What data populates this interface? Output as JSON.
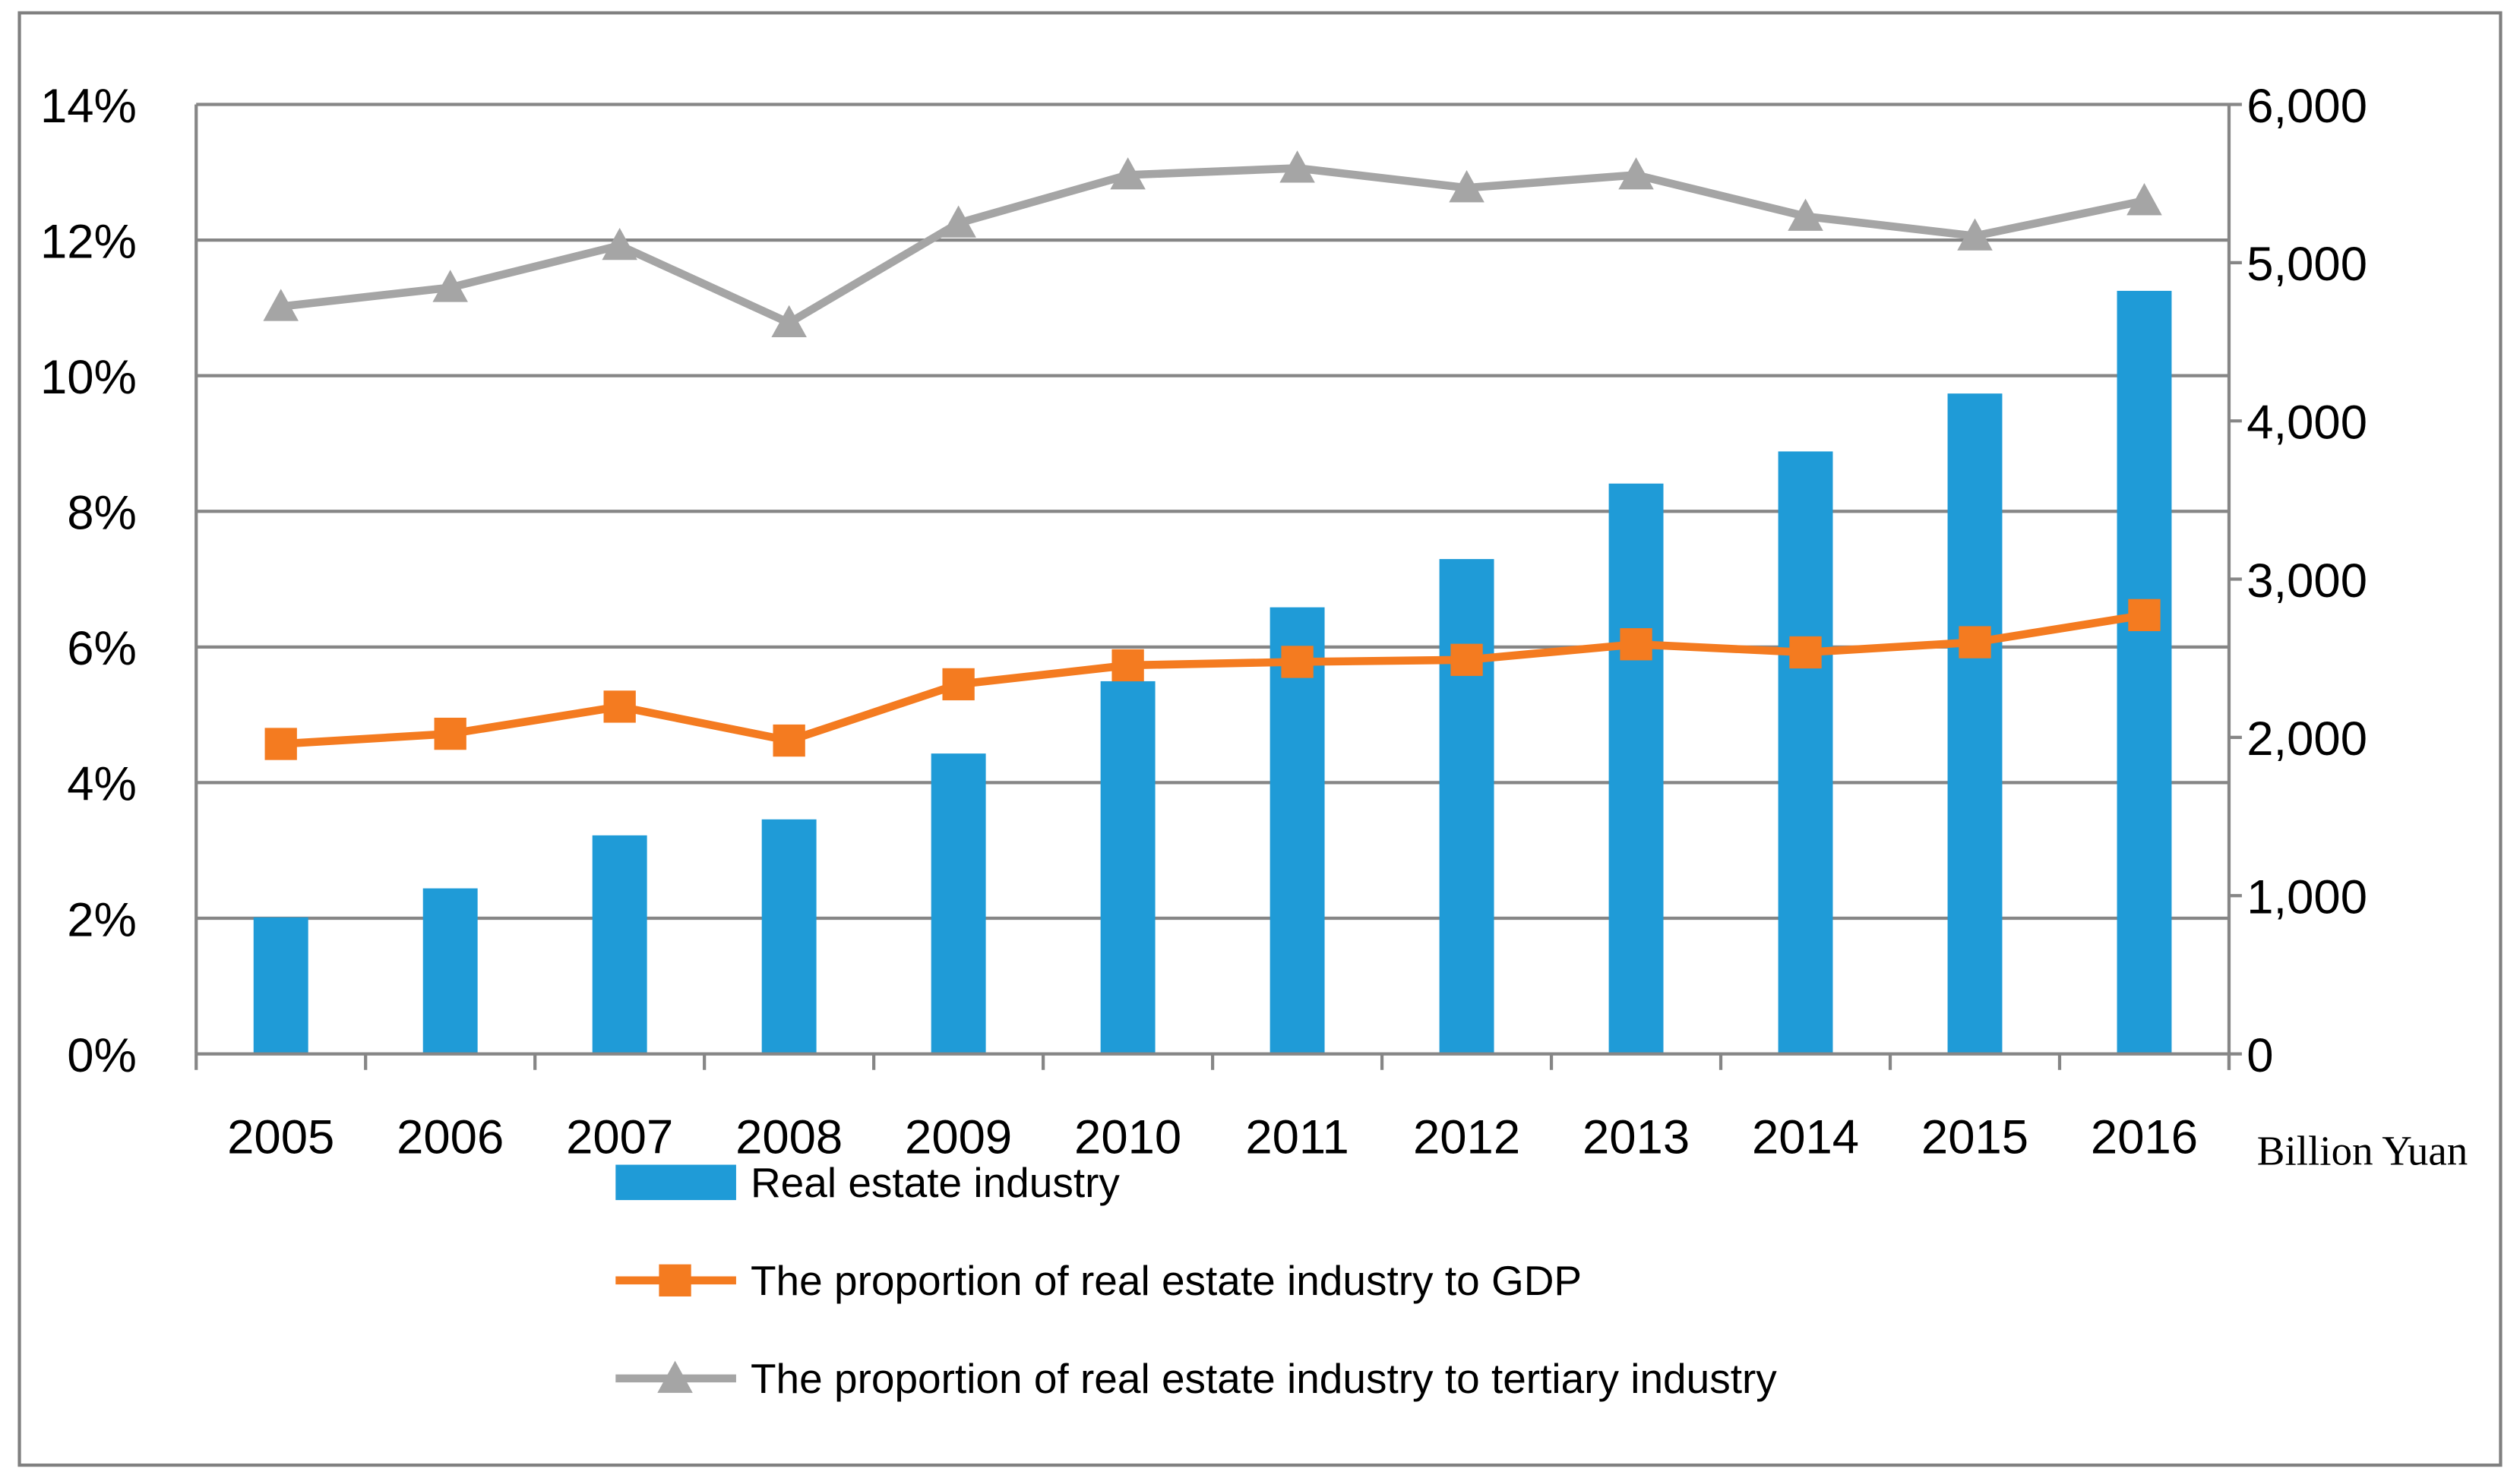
{
  "chart_data": {
    "type": "bar+line",
    "title": "",
    "categories": [
      "2005",
      "2006",
      "2007",
      "2008",
      "2009",
      "2010",
      "2011",
      "2012",
      "2013",
      "2014",
      "2015",
      "2016"
    ],
    "series": [
      {
        "name": "Real estate industry",
        "type": "bar",
        "axis": "right",
        "color": "#1f9bd7",
        "values": [
          863,
          1046,
          1381,
          1482,
          1898,
          2355,
          2822,
          3127,
          3604,
          3807,
          4173,
          4822
        ]
      },
      {
        "name": "The proportion of real estate industry to GDP",
        "type": "line",
        "marker": "square",
        "axis": "left",
        "color": "#f47b20",
        "values": [
          4.57,
          4.72,
          5.12,
          4.62,
          5.45,
          5.73,
          5.78,
          5.81,
          6.04,
          5.92,
          6.07,
          6.47
        ]
      },
      {
        "name": "The proportion of real estate industry to tertiary industry",
        "type": "line",
        "marker": "triangle",
        "axis": "left",
        "color": "#a5a5a5",
        "values": [
          11.02,
          11.3,
          11.92,
          10.78,
          12.25,
          12.96,
          13.06,
          12.77,
          12.96,
          12.35,
          12.06,
          12.58
        ]
      }
    ],
    "y_left": {
      "ylim": [
        0,
        14
      ],
      "ticks": [
        "0%",
        "2%",
        "4%",
        "6%",
        "8%",
        "10%",
        "12%",
        "14%"
      ]
    },
    "y_right": {
      "ylim": [
        0,
        6000
      ],
      "ticks": [
        "0",
        "1,000",
        "2,000",
        "3,000",
        "4,000",
        "5,000",
        "6,000"
      ],
      "label": "Billion Yuan"
    },
    "grid": true,
    "legend_position": "bottom"
  }
}
